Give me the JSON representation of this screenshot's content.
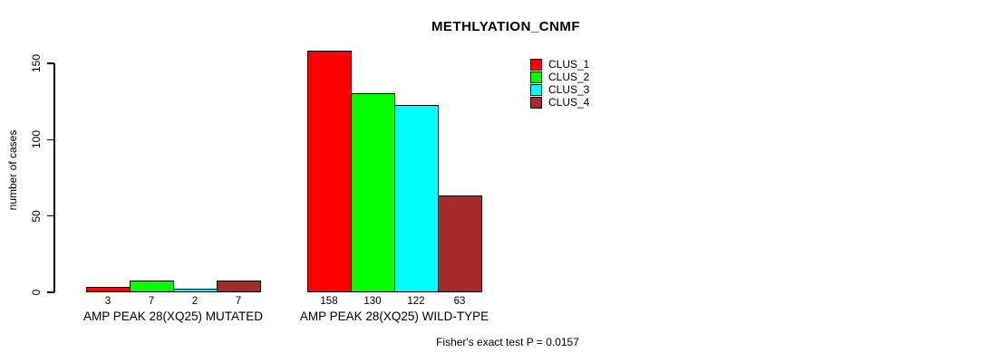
{
  "title": "METHLYATION_CNMF",
  "footnote": "Fisher's exact test P = 0.0157",
  "chart_data": {
    "type": "bar",
    "title": "METHLYATION_CNMF",
    "xlabel": "",
    "ylabel": "number of cases",
    "ylim": [
      0,
      150
    ],
    "yticks": [
      0,
      50,
      100,
      150
    ],
    "grid": false,
    "legend_position": "top-right",
    "bar_value_labels_shown": true,
    "categories": [
      "AMP PEAK 28(XQ25) MUTATED",
      "AMP PEAK 28(XQ25) WILD-TYPE"
    ],
    "series": [
      {
        "name": "CLUS_1",
        "color": "#FF0000",
        "values": [
          3,
          158
        ]
      },
      {
        "name": "CLUS_2",
        "color": "#00FF00",
        "values": [
          7,
          130
        ]
      },
      {
        "name": "CLUS_3",
        "color": "#00FFFF",
        "values": [
          2,
          122
        ]
      },
      {
        "name": "CLUS_4",
        "color": "#A52A2A",
        "values": [
          7,
          63
        ]
      }
    ],
    "annotation": "Fisher's exact test P = 0.0157"
  }
}
